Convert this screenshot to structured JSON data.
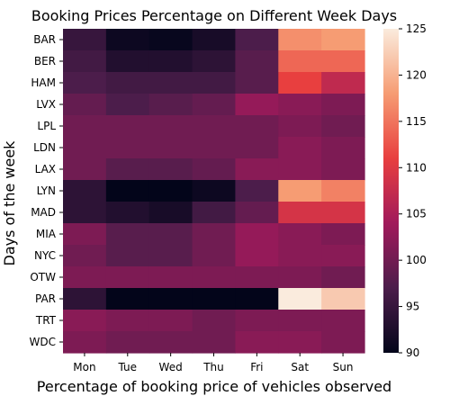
{
  "chart_data": {
    "type": "heatmap",
    "title": "Booking Prices Percentage on Different Week Days",
    "xlabel": "Percentage of booking price of vehicles observed",
    "ylabel": "Days of the week",
    "x_categories": [
      "Mon",
      "Tue",
      "Wed",
      "Thu",
      "Fri",
      "Sat",
      "Sun"
    ],
    "y_categories": [
      "BAR",
      "BER",
      "HAM",
      "LVX",
      "LPL",
      "LDN",
      "LAX",
      "LYN",
      "MAD",
      "MIA",
      "NYC",
      "OTW",
      "PAR",
      "TRT",
      "WDC"
    ],
    "values": [
      [
        95,
        91,
        90.5,
        92,
        97,
        117,
        118
      ],
      [
        96,
        93,
        93,
        94,
        98,
        114,
        114
      ],
      [
        97,
        96,
        96,
        96,
        98,
        111,
        107
      ],
      [
        99,
        97,
        98,
        99,
        103,
        102,
        101
      ],
      [
        100,
        100,
        100,
        100,
        100,
        101,
        100
      ],
      [
        100,
        100,
        100,
        100,
        100,
        102,
        101
      ],
      [
        100,
        98,
        98,
        99,
        102,
        102,
        101
      ],
      [
        94,
        90,
        90,
        91,
        97,
        118,
        116
      ],
      [
        94,
        93,
        92,
        96,
        99,
        109,
        109
      ],
      [
        101,
        98,
        98,
        100,
        103,
        102,
        101
      ],
      [
        100,
        98,
        98,
        100,
        103,
        102,
        102
      ],
      [
        101,
        101,
        101,
        101,
        101,
        101,
        100
      ],
      [
        94,
        90,
        90,
        90,
        90,
        125,
        122
      ],
      [
        102,
        101,
        101,
        100,
        101,
        101,
        101
      ],
      [
        101,
        100,
        100,
        100,
        102,
        102,
        101
      ]
    ],
    "colorbar": {
      "min": 90,
      "max": 125,
      "ticks": [
        90,
        95,
        100,
        105,
        110,
        115,
        120,
        125
      ]
    },
    "colormap": [
      "#03051A",
      "#4C1D4B",
      "#A11A5B",
      "#E83F3F",
      "#F69C73",
      "#FAEBDD"
    ]
  }
}
